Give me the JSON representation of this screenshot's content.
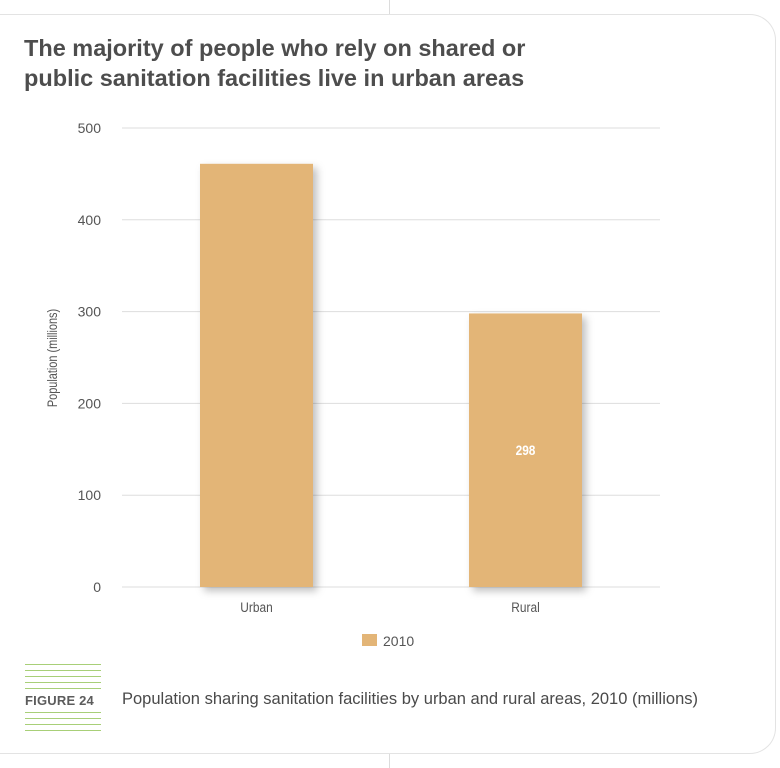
{
  "title_lines": [
    "The majority of people who rely on shared or",
    "public sanitation facilities live in urban areas"
  ],
  "figure": {
    "label": "FIGURE 24",
    "caption": "Population sharing sanitation facilities by urban and rural areas, 2010 (millions)"
  },
  "colors": {
    "bar": "#e3b577",
    "grid": "#dddddd",
    "text": "#4d4d4d",
    "accent_green": "#a8cf78"
  },
  "chart_data": {
    "type": "bar",
    "title": "",
    "xlabel": "",
    "ylabel": "Population (millions)",
    "categories": [
      "Urban",
      "Rural"
    ],
    "series": [
      {
        "name": "2010",
        "values": [
          461,
          298
        ],
        "data_labels": [
          "",
          "298"
        ]
      }
    ],
    "ylim": [
      0,
      500
    ],
    "yticks": [
      0,
      100,
      200,
      300,
      400,
      500
    ],
    "grid": true,
    "legend_position": "bottom"
  }
}
